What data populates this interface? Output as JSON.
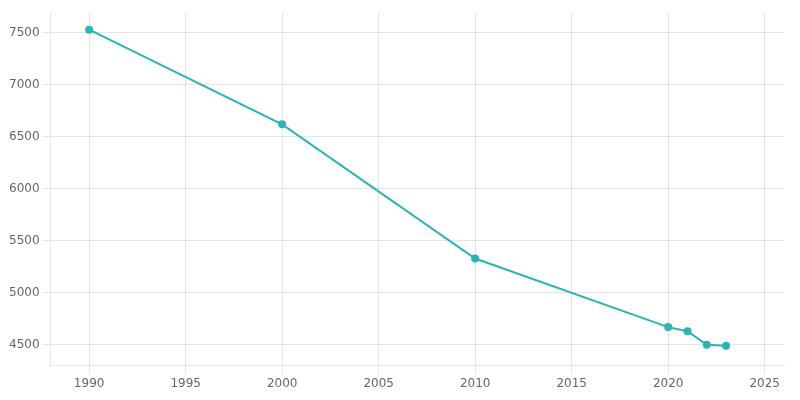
{
  "chart_data": {
    "type": "line",
    "x": [
      1990,
      2000,
      2010,
      2020,
      2021,
      2022,
      2023
    ],
    "values": [
      7530,
      6620,
      5330,
      4670,
      4630,
      4500,
      4490
    ],
    "color": "#2ab5b5",
    "marker": "o",
    "xlim": [
      1988,
      2026
    ],
    "ylim": [
      4300,
      7700
    ],
    "xticks": [
      1990,
      1995,
      2000,
      2005,
      2010,
      2015,
      2020,
      2025
    ],
    "yticks": [
      4500,
      5000,
      5500,
      6000,
      6500,
      7000,
      7500
    ],
    "grid": true
  }
}
